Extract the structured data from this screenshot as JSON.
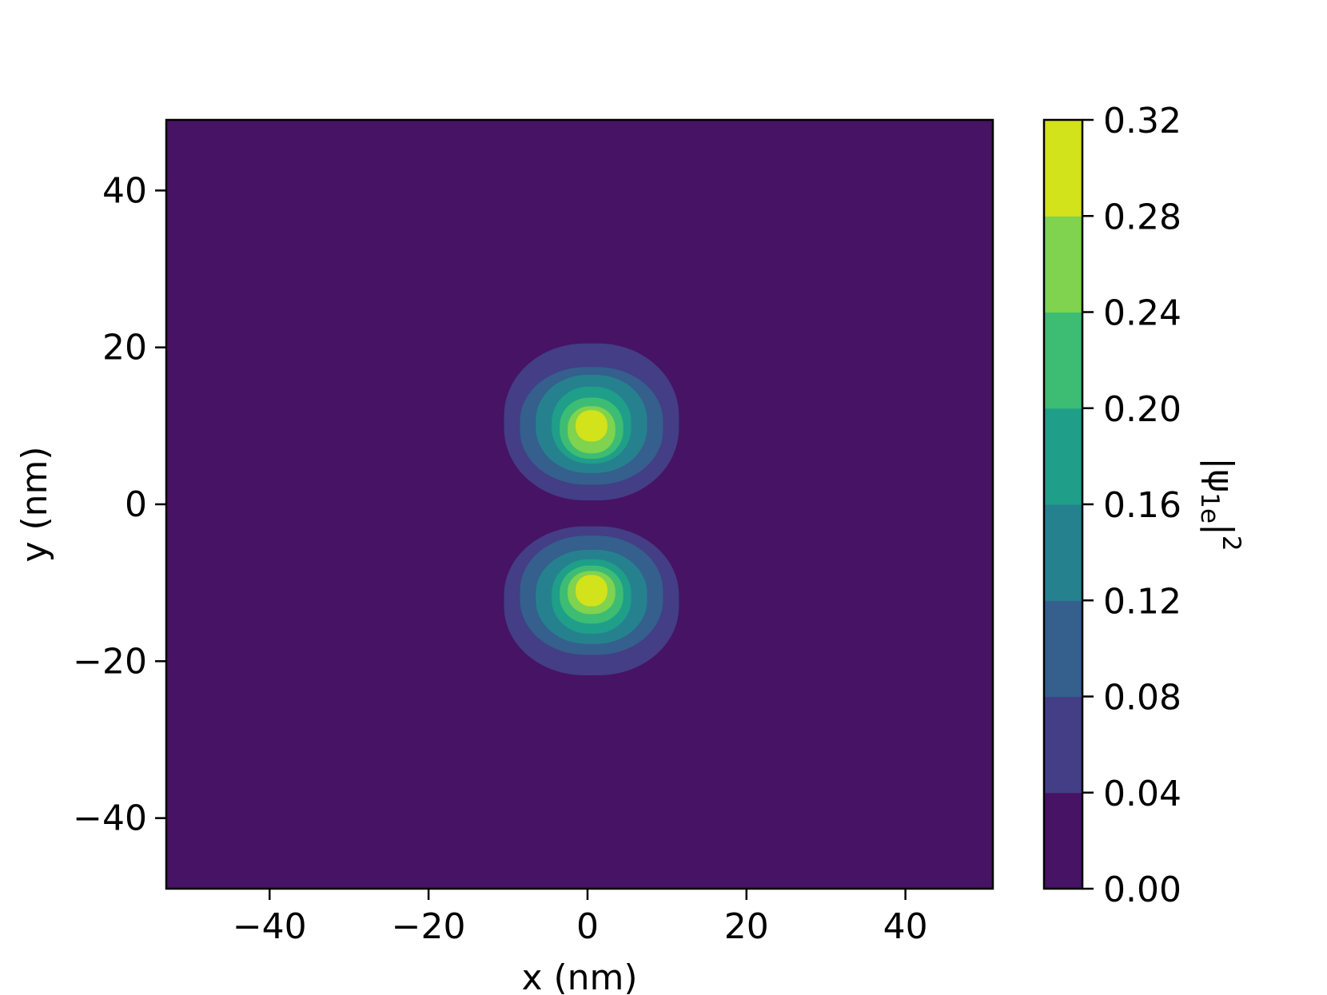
{
  "chart_data": {
    "type": "heatmap",
    "subtype": "filled-contour",
    "xlabel": "x (nm)",
    "ylabel": "y (nm)",
    "colorbar_label": "|ψ1e|²",
    "colorbar_label_parts": {
      "base": "|ψ",
      "subscript": "1e",
      "tail": "|",
      "superscript": "2"
    },
    "xlim": [
      -53,
      51
    ],
    "ylim": [
      -49,
      49
    ],
    "xticks": [
      -40,
      -20,
      0,
      20,
      40
    ],
    "xtick_labels": [
      "−40",
      "−20",
      "0",
      "20",
      "40"
    ],
    "yticks": [
      -40,
      -20,
      0,
      20,
      40
    ],
    "ytick_labels": [
      "−40",
      "−20",
      "0",
      "20",
      "40"
    ],
    "levels": [
      0.0,
      0.04,
      0.08,
      0.12,
      0.16,
      0.2,
      0.24,
      0.28,
      0.32
    ],
    "level_labels": [
      "0.00",
      "0.04",
      "0.08",
      "0.12",
      "0.16",
      "0.20",
      "0.24",
      "0.28",
      "0.32"
    ],
    "colors": [
      "#471365",
      "#433e85",
      "#355f8d",
      "#26818e",
      "#1f9e89",
      "#3dbc74",
      "#7fd34e",
      "#d2e21b"
    ],
    "grid": false,
    "lobes": [
      {
        "name": "upper",
        "peak": [
          0.5,
          10
        ],
        "contours": [
          {
            "level": 0.04,
            "x": [
              -10.5,
              11.5
            ],
            "y": [
              0.5,
              20.5
            ]
          },
          {
            "level": 0.08,
            "x": [
              -8.5,
              9.5
            ],
            "y": [
              2.5,
              17.5
            ]
          },
          {
            "level": 0.12,
            "x": [
              -6.5,
              7.5
            ],
            "y": [
              4.0,
              16.5
            ]
          },
          {
            "level": 0.16,
            "x": [
              -4.5,
              5.5
            ],
            "y": [
              5.2,
              15.0
            ]
          },
          {
            "level": 0.2,
            "x": [
              -3.5,
              4.5
            ],
            "y": [
              5.8,
              13.6
            ]
          },
          {
            "level": 0.24,
            "x": [
              -2.5,
              3.5
            ],
            "y": [
              6.5,
              12.5
            ]
          },
          {
            "level": 0.28,
            "x": [
              -1.5,
              2.5
            ],
            "y": [
              8.0,
              12.0
            ]
          }
        ]
      },
      {
        "name": "lower",
        "peak": [
          0.5,
          -11
        ],
        "contours": [
          {
            "level": 0.04,
            "x": [
              -10.5,
              11.5
            ],
            "y": [
              -21.8,
              -2.8
            ]
          },
          {
            "level": 0.08,
            "x": [
              -8.5,
              9.5
            ],
            "y": [
              -19.2,
              -4.0
            ]
          },
          {
            "level": 0.12,
            "x": [
              -6.5,
              7.5
            ],
            "y": [
              -17.8,
              -5.8
            ]
          },
          {
            "level": 0.16,
            "x": [
              -4.5,
              5.5
            ],
            "y": [
              -16.5,
              -7.0
            ]
          },
          {
            "level": 0.2,
            "x": [
              -3.5,
              4.5
            ],
            "y": [
              -15.2,
              -7.8
            ]
          },
          {
            "level": 0.24,
            "x": [
              -2.5,
              3.5
            ],
            "y": [
              -14.0,
              -8.5
            ]
          },
          {
            "level": 0.28,
            "x": [
              -1.5,
              2.5
            ],
            "y": [
              -13.0,
              -9.0
            ]
          }
        ]
      }
    ]
  }
}
